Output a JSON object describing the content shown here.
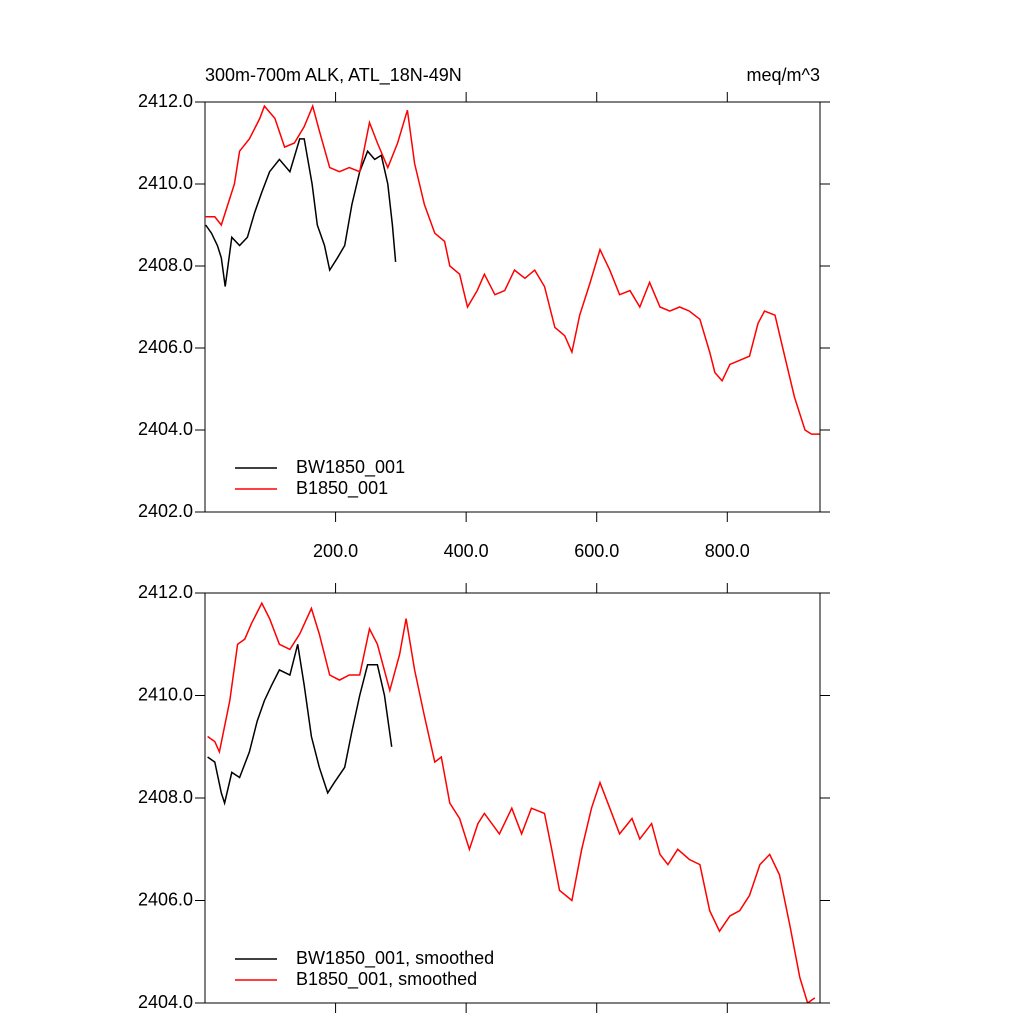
{
  "chart_data": [
    {
      "type": "line",
      "title": "300m-700m ALK, ATL_18N-49N",
      "units": "meq/m^3",
      "xlim": [
        0,
        942
      ],
      "xticks": [
        {
          "value": 200,
          "label": "200.0"
        },
        {
          "value": 400,
          "label": "400.0"
        },
        {
          "value": 600,
          "label": "600.0"
        },
        {
          "value": 800,
          "label": "800.0"
        }
      ],
      "ylim": [
        2402,
        2412
      ],
      "yticks": [
        {
          "value": 2402,
          "label": "2402.0"
        },
        {
          "value": 2404,
          "label": "2404.0"
        },
        {
          "value": 2406,
          "label": "2406.0"
        },
        {
          "value": 2408,
          "label": "2408.0"
        },
        {
          "value": 2410,
          "label": "2410.0"
        },
        {
          "value": 2412,
          "label": "2412.0"
        }
      ],
      "legend": "lower-left",
      "series": [
        {
          "name": "BW1850_001",
          "color": "#000000",
          "x": [
            1,
            10,
            19,
            25,
            31,
            41,
            53,
            65,
            76,
            87,
            99,
            114,
            130,
            145,
            152,
            164,
            172,
            183,
            191,
            203,
            214,
            225,
            237,
            249,
            260,
            270,
            280,
            287,
            292
          ],
          "values": [
            2409.0,
            2408.8,
            2408.5,
            2408.2,
            2407.5,
            2408.7,
            2408.5,
            2408.7,
            2409.3,
            2409.8,
            2410.3,
            2410.6,
            2410.3,
            2411.1,
            2411.1,
            2410.0,
            2409.0,
            2408.5,
            2407.9,
            2408.2,
            2408.5,
            2409.5,
            2410.3,
            2410.8,
            2410.6,
            2410.7,
            2410.0,
            2409.0,
            2408.1
          ]
        },
        {
          "name": "B1850_001",
          "color": "#ff0000",
          "x": [
            1,
            15,
            25,
            45,
            53,
            68,
            84,
            91,
            107,
            122,
            137,
            152,
            165,
            175,
            191,
            206,
            221,
            237,
            252,
            264,
            280,
            295,
            310,
            321,
            336,
            352,
            367,
            375,
            390,
            402,
            417,
            428,
            444,
            459,
            474,
            490,
            505,
            520,
            536,
            551,
            562,
            574,
            590,
            605,
            620,
            635,
            651,
            666,
            681,
            697,
            712,
            727,
            742,
            758,
            773,
            781,
            792,
            804,
            819,
            834,
            847,
            857,
            873,
            888,
            903,
            919,
            929,
            942
          ],
          "values": [
            2409.2,
            2409.2,
            2409.0,
            2410.0,
            2410.8,
            2411.1,
            2411.6,
            2411.9,
            2411.6,
            2410.9,
            2411.0,
            2411.4,
            2411.9,
            2411.3,
            2410.4,
            2410.3,
            2410.4,
            2410.3,
            2411.5,
            2411.0,
            2410.4,
            2411.0,
            2411.8,
            2410.5,
            2409.5,
            2408.8,
            2408.6,
            2408.0,
            2407.8,
            2407.0,
            2407.4,
            2407.8,
            2407.3,
            2407.4,
            2407.9,
            2407.7,
            2407.9,
            2407.5,
            2406.5,
            2406.3,
            2405.9,
            2406.8,
            2407.6,
            2408.4,
            2407.9,
            2407.3,
            2407.4,
            2407.0,
            2407.6,
            2407.0,
            2406.9,
            2407.0,
            2406.9,
            2406.7,
            2405.9,
            2405.4,
            2405.2,
            2405.6,
            2405.7,
            2405.8,
            2406.6,
            2406.9,
            2406.8,
            2405.8,
            2404.8,
            2404.0,
            2403.9,
            2403.9
          ]
        }
      ]
    },
    {
      "type": "line",
      "xlim": [
        0,
        942
      ],
      "xticks": [
        200,
        400,
        600,
        800
      ],
      "xtick_labels": false,
      "ylim": [
        2404,
        2412
      ],
      "yticks": [
        {
          "value": 2404,
          "label": "2404.0"
        },
        {
          "value": 2406,
          "label": "2406.0"
        },
        {
          "value": 2408,
          "label": "2408.0"
        },
        {
          "value": 2410,
          "label": "2410.0"
        },
        {
          "value": 2412,
          "label": "2412.0"
        }
      ],
      "legend": "lower-left",
      "series": [
        {
          "name": "BW1850_001, smoothed",
          "color": "#000000",
          "x": [
            4,
            15,
            25,
            30,
            41,
            53,
            68,
            80,
            91,
            102,
            114,
            130,
            142,
            152,
            163,
            175,
            188,
            198,
            214,
            225,
            237,
            249,
            264,
            275,
            286
          ],
          "values": [
            2408.8,
            2408.7,
            2408.1,
            2407.9,
            2408.5,
            2408.4,
            2408.9,
            2409.5,
            2409.9,
            2410.2,
            2410.5,
            2410.4,
            2411.0,
            2410.2,
            2409.2,
            2408.6,
            2408.1,
            2408.3,
            2408.6,
            2409.3,
            2410.0,
            2410.6,
            2410.6,
            2410.0,
            2409.0
          ]
        },
        {
          "name": "B1850_001, smoothed",
          "color": "#ff0000",
          "x": [
            4,
            15,
            22,
            38,
            50,
            61,
            71,
            87,
            99,
            114,
            130,
            145,
            163,
            175,
            191,
            206,
            221,
            237,
            252,
            264,
            283,
            298,
            308,
            321,
            336,
            352,
            362,
            375,
            390,
            405,
            418,
            428,
            451,
            470,
            485,
            500,
            520,
            531,
            543,
            562,
            577,
            592,
            605,
            620,
            635,
            654,
            666,
            684,
            697,
            709,
            724,
            742,
            758,
            773,
            788,
            804,
            819,
            834,
            850,
            865,
            880,
            896,
            911,
            923,
            934
          ],
          "values": [
            2409.2,
            2409.1,
            2408.9,
            2409.9,
            2411.0,
            2411.1,
            2411.4,
            2411.8,
            2411.5,
            2411.0,
            2410.9,
            2411.2,
            2411.7,
            2411.2,
            2410.4,
            2410.3,
            2410.4,
            2410.4,
            2411.3,
            2411.0,
            2410.1,
            2410.8,
            2411.5,
            2410.5,
            2409.6,
            2408.7,
            2408.8,
            2407.9,
            2407.6,
            2407.0,
            2407.5,
            2407.7,
            2407.3,
            2407.8,
            2407.3,
            2407.8,
            2407.7,
            2407.0,
            2406.2,
            2406.0,
            2407.0,
            2407.8,
            2408.3,
            2407.8,
            2407.3,
            2407.6,
            2407.2,
            2407.5,
            2406.9,
            2406.7,
            2407.0,
            2406.8,
            2406.7,
            2405.8,
            2405.4,
            2405.7,
            2405.8,
            2406.1,
            2406.7,
            2406.9,
            2406.5,
            2405.5,
            2404.5,
            2404.0,
            2404.1
          ]
        }
      ]
    }
  ]
}
